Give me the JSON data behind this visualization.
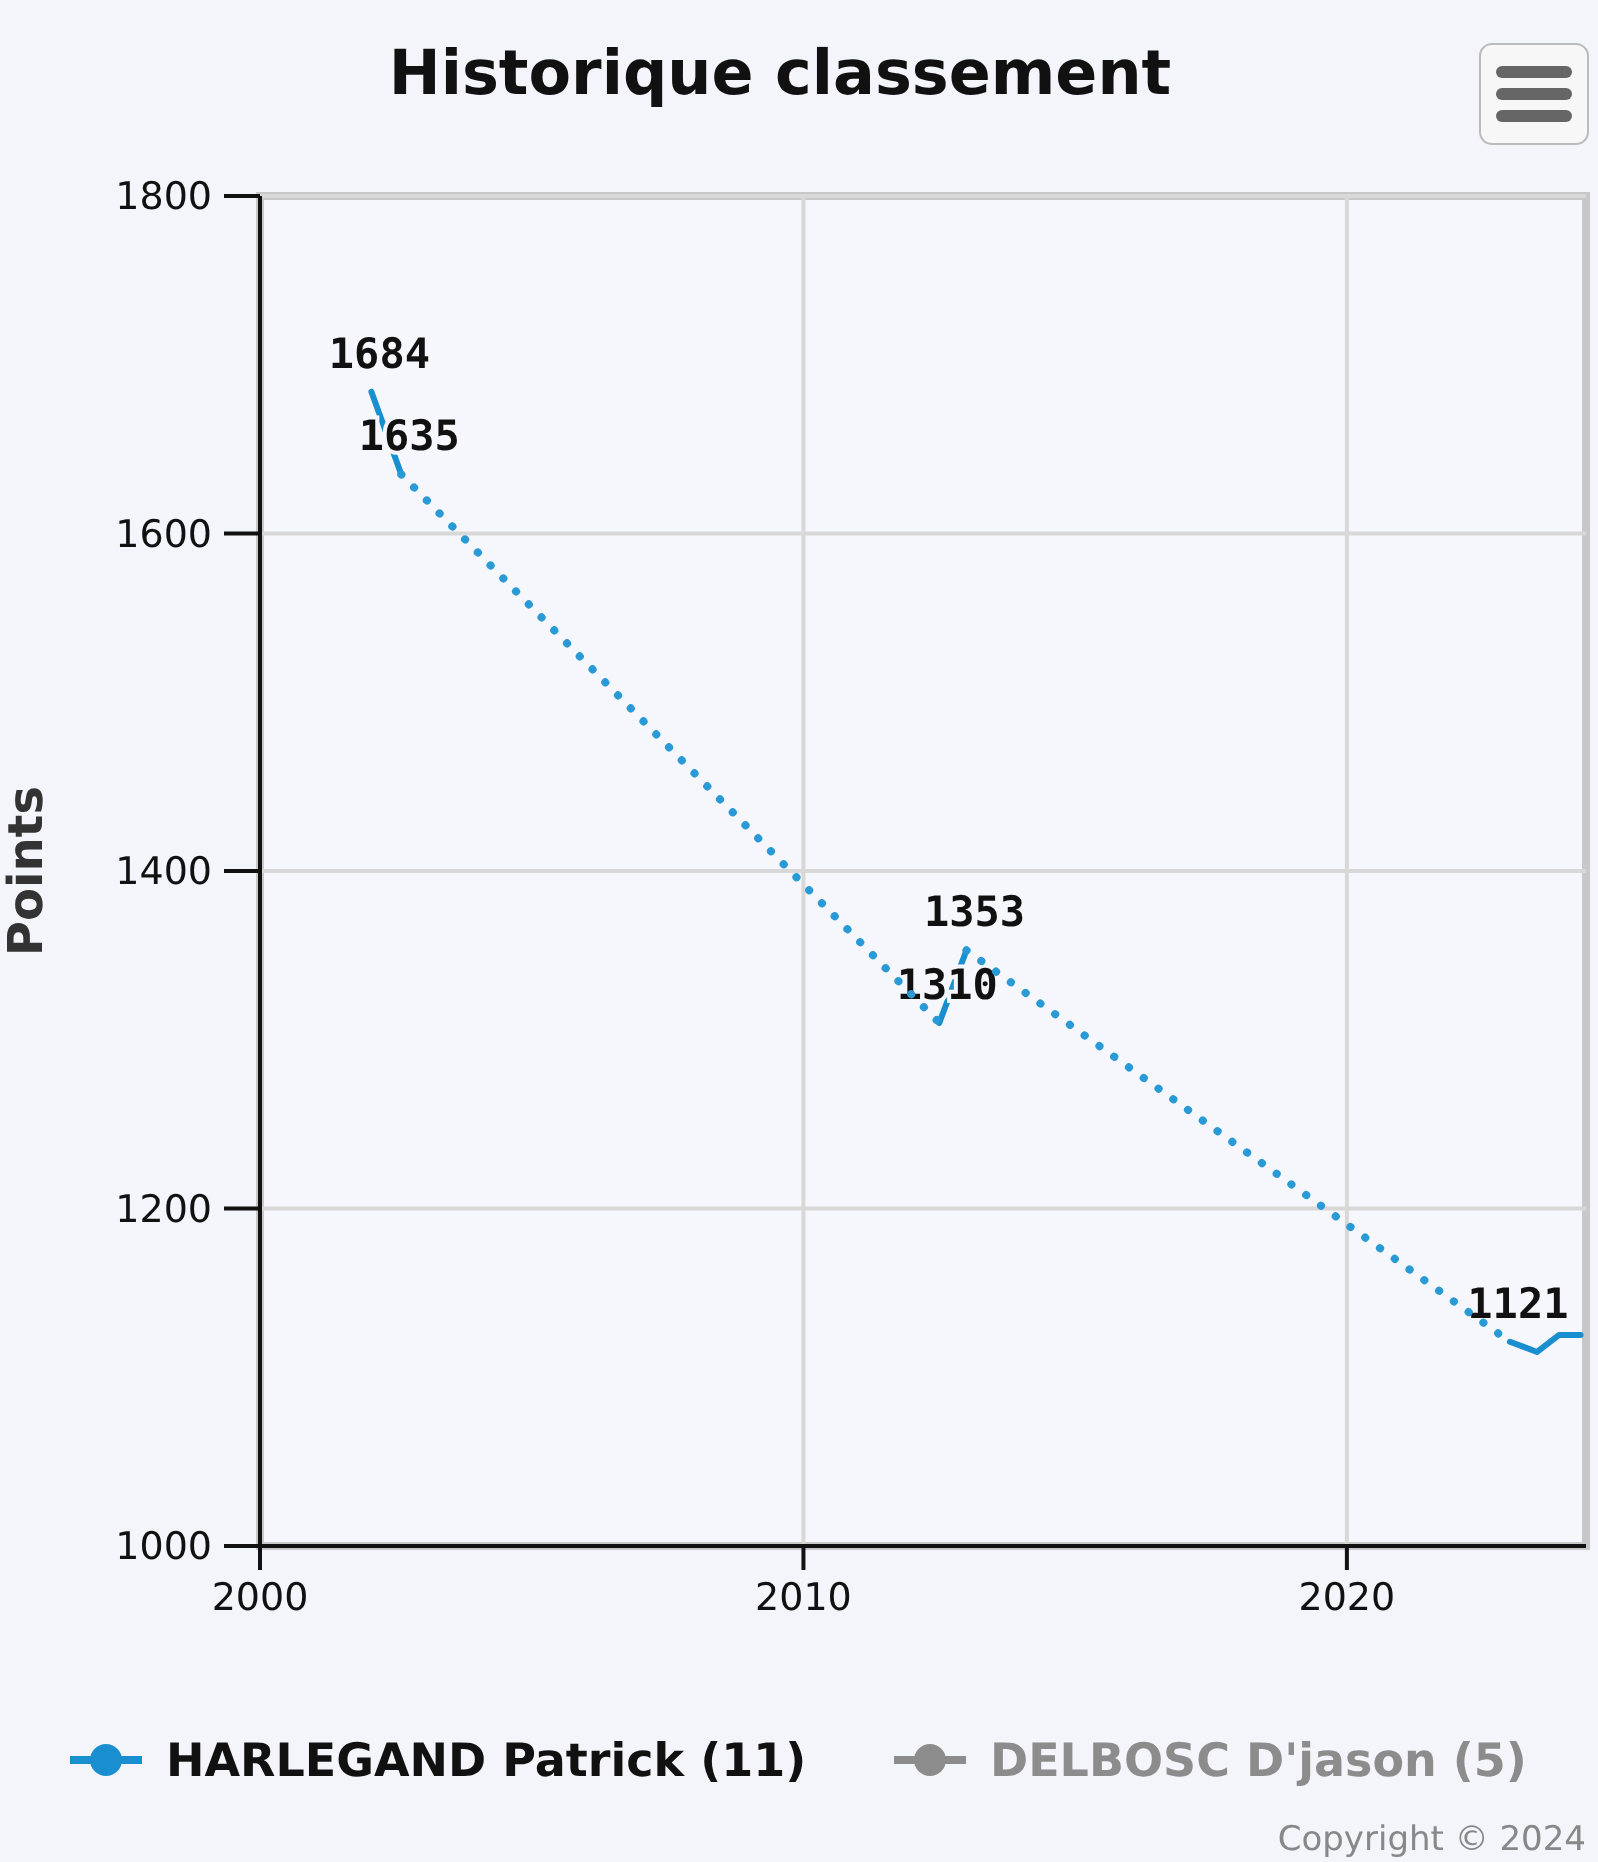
{
  "chart_data": {
    "type": "line",
    "title": "Historique classement",
    "ylabel": "Points",
    "x": [
      2002.05,
      2002.6,
      2007,
      2012.5,
      2013.0,
      2018,
      2023.0,
      2023.5,
      2023.9,
      2024.3
    ],
    "series": [
      {
        "name": "HARLEGAND Patrick (11)",
        "color": "#1a8fcf",
        "values": [
          1684,
          1635,
          null,
          1310,
          1353,
          null,
          1121,
          1115,
          1125,
          1125
        ],
        "value_labels": [
          "1684",
          "1635",
          null,
          "1310",
          "1353",
          null,
          "1121",
          null,
          null,
          null
        ]
      },
      {
        "color": "#2a9ad6",
        "line_style": "dotted",
        "x": [
          2002.6,
          2012.5,
          2012.75,
          2013.0,
          2023.0
        ],
        "values": [
          1635,
          1310,
          null,
          1353,
          1121
        ]
      },
      {
        "name": "DELBOSC D'jason (5)",
        "color": "#8c8c8c",
        "values": [
          null,
          null,
          null,
          null,
          null,
          null,
          null,
          null,
          null,
          null
        ]
      }
    ],
    "xlim": [
      2000,
      2024.4
    ],
    "xticks": [
      2000,
      2010,
      2020
    ],
    "ylim": [
      1000,
      1800
    ],
    "yticks": [
      1000,
      1200,
      1400,
      1600,
      1800
    ],
    "grid": true,
    "legend": "bottom",
    "line_style": "solid",
    "marker": "none",
    "annotations": [
      "Copyright © 2024"
    ]
  }
}
